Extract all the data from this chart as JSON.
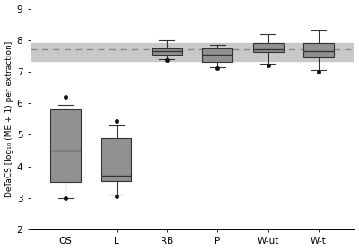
{
  "categories": [
    "OS",
    "L",
    "RB",
    "P",
    "W-ut",
    "W-t"
  ],
  "ylabel": "DeTaCS [log₁₀ (ME + 1) per extraction]",
  "ylim": [
    2,
    9
  ],
  "yticks": [
    2,
    3,
    4,
    5,
    6,
    7,
    8,
    9
  ],
  "reference_line": 7.72,
  "reference_band_low": 7.35,
  "reference_band_high": 7.9,
  "box_data": {
    "OS": {
      "whislo": 3.0,
      "q1": 3.5,
      "med": 4.5,
      "q3": 5.8,
      "whishi": 5.95,
      "fliers": [
        6.2,
        3.0
      ]
    },
    "L": {
      "whislo": 3.1,
      "q1": 3.55,
      "med": 3.7,
      "q3": 4.9,
      "whishi": 5.3,
      "fliers": [
        5.45,
        3.05
      ]
    },
    "RB": {
      "whislo": 7.4,
      "q1": 7.55,
      "med": 7.65,
      "q3": 7.75,
      "whishi": 8.0,
      "fliers": [
        7.38
      ]
    },
    "P": {
      "whislo": 7.15,
      "q1": 7.3,
      "med": 7.55,
      "q3": 7.75,
      "whishi": 7.85,
      "fliers": [
        7.12
      ]
    },
    "W-ut": {
      "whislo": 7.25,
      "q1": 7.62,
      "med": 7.72,
      "q3": 7.9,
      "whishi": 8.2,
      "fliers": [
        7.2
      ]
    },
    "W-t": {
      "whislo": 7.05,
      "q1": 7.45,
      "med": 7.65,
      "q3": 7.9,
      "whishi": 8.3,
      "fliers": [
        7.0
      ]
    }
  },
  "box_color": "#919191",
  "flier_color": "#111111",
  "band_color": "#c8c8c8",
  "background_color": "#ffffff",
  "figsize": [
    4.0,
    2.8
  ],
  "dpi": 100
}
